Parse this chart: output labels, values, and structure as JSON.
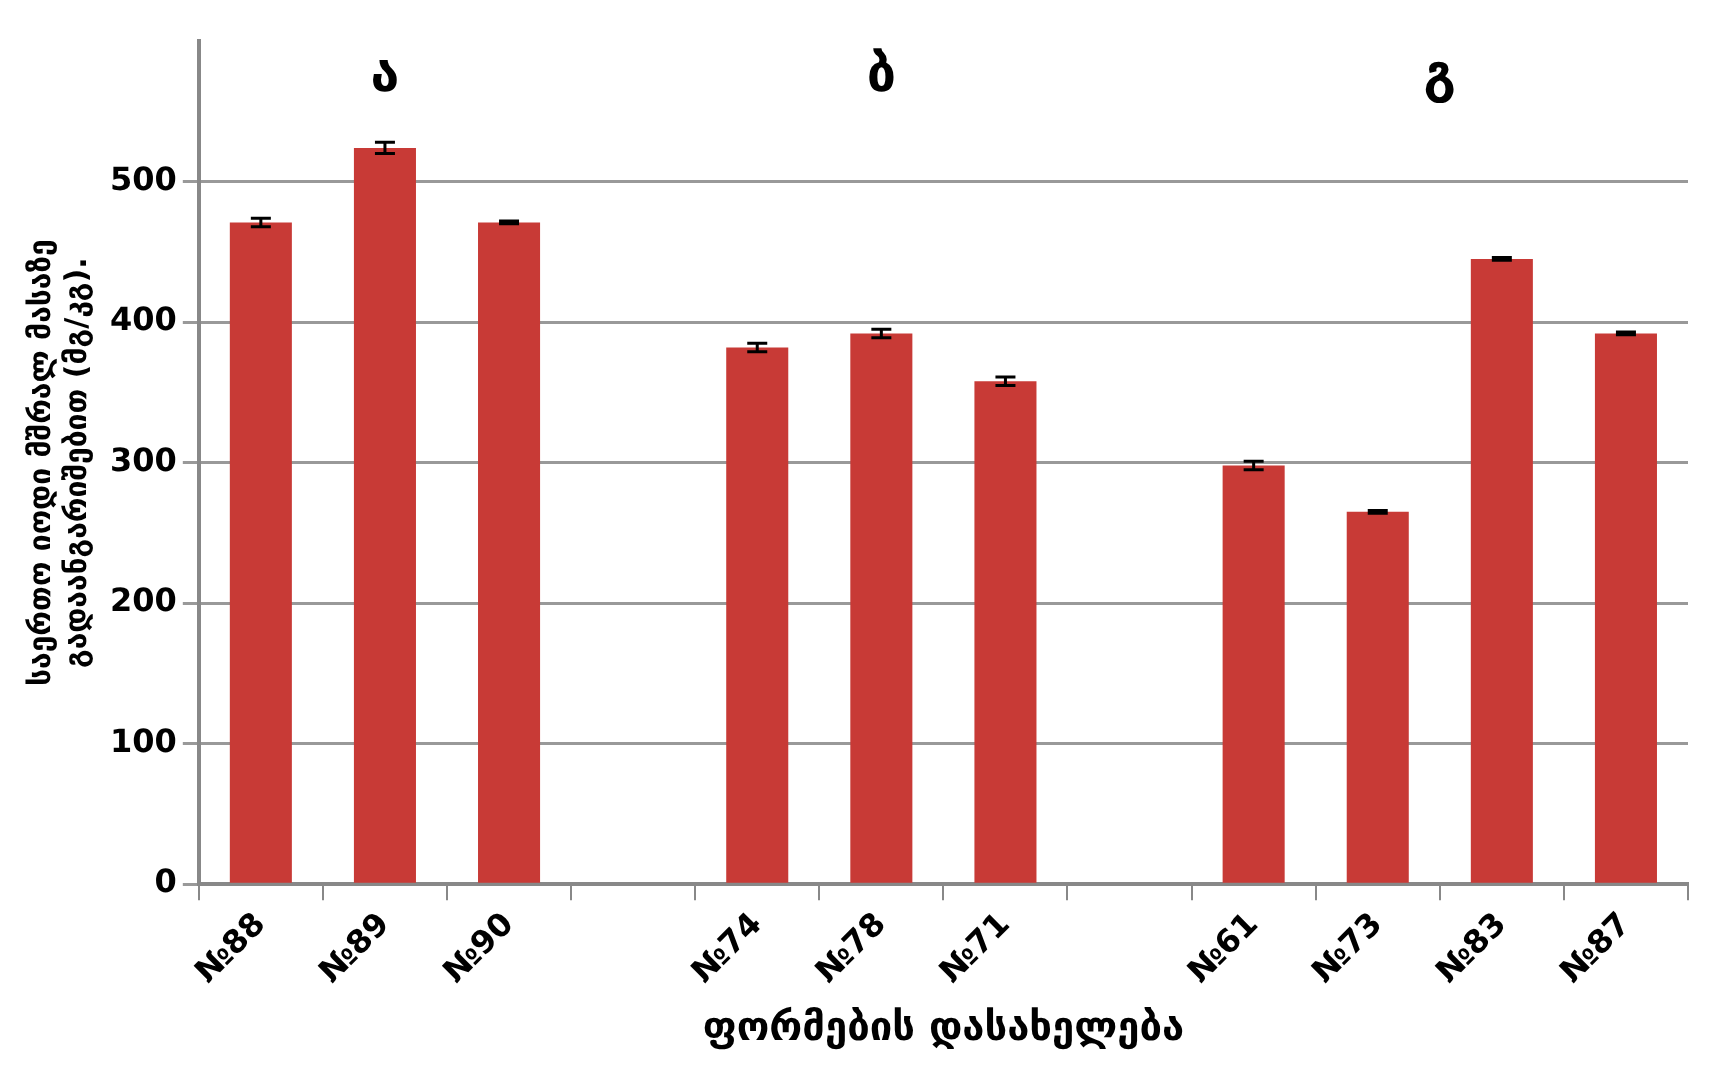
{
  "chart_data": {
    "type": "bar",
    "ylabel": "საერთო იოდი მშრალ მასაზე\nგადაანგარიშებით (მგ/კგ).",
    "xlabel": "ფორმების დასახელება",
    "categories": [
      "№88",
      "№89",
      "№90",
      null,
      "№74",
      "№78",
      "№71",
      null,
      "№61",
      "№73",
      "№83",
      "№87"
    ],
    "values": [
      471,
      524,
      471,
      null,
      382,
      392,
      358,
      null,
      298,
      265,
      445,
      392
    ],
    "errors": [
      3,
      4,
      1,
      null,
      3,
      3,
      3,
      null,
      3,
      1,
      1,
      1
    ],
    "color": "#c83a36",
    "ylim": [
      0,
      600
    ],
    "yticks": [
      0,
      100,
      200,
      300,
      400,
      500
    ],
    "grid": "y",
    "annotations": [
      "ა",
      "ბ",
      "გ"
    ]
  }
}
